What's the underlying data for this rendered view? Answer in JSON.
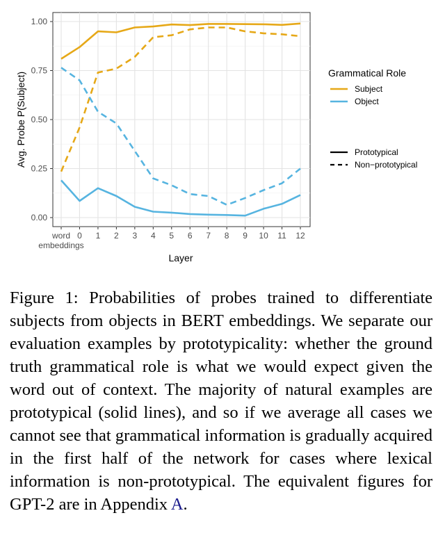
{
  "chart_data": {
    "type": "line",
    "xlabel": "Layer",
    "ylabel": "Avg. Probe P(Subject)",
    "categories": [
      [
        "word",
        "embeddings"
      ],
      "0",
      "1",
      "2",
      "3",
      "4",
      "5",
      "6",
      "7",
      "8",
      "9",
      "10",
      "11",
      "12"
    ],
    "ylim": [
      0,
      1
    ],
    "yticks": [
      "0.00",
      "0.25",
      "0.50",
      "0.75",
      "1.00"
    ],
    "grid": true,
    "legend_placement": "right",
    "legend": {
      "role_title": "Grammatical Role",
      "roles": [
        {
          "name": "Subject",
          "color": "#E6A817"
        },
        {
          "name": "Object",
          "color": "#56B4E0"
        }
      ],
      "styles": [
        {
          "name": "Prototypical",
          "dash": "solid"
        },
        {
          "name": "Non−prototypical",
          "dash": "dashed"
        }
      ]
    },
    "series": [
      {
        "role": "Subject",
        "style": "Prototypical",
        "color": "#E6A817",
        "dash": "solid",
        "values": [
          0.81,
          0.87,
          0.95,
          0.945,
          0.97,
          0.975,
          0.985,
          0.982,
          0.988,
          0.988,
          0.987,
          0.986,
          0.983,
          0.99
        ]
      },
      {
        "role": "Subject",
        "style": "Non−prototypical",
        "color": "#E6A817",
        "dash": "dashed",
        "values": [
          0.235,
          0.46,
          0.74,
          0.76,
          0.82,
          0.92,
          0.93,
          0.96,
          0.97,
          0.97,
          0.95,
          0.94,
          0.935,
          0.925
        ]
      },
      {
        "role": "Object",
        "style": "Prototypical",
        "color": "#56B4E0",
        "dash": "solid",
        "values": [
          0.19,
          0.085,
          0.15,
          0.11,
          0.055,
          0.03,
          0.025,
          0.018,
          0.015,
          0.013,
          0.01,
          0.045,
          0.07,
          0.115
        ]
      },
      {
        "role": "Object",
        "style": "Non−prototypical",
        "color": "#56B4E0",
        "dash": "dashed",
        "values": [
          0.765,
          0.7,
          0.54,
          0.48,
          0.34,
          0.2,
          0.165,
          0.12,
          0.11,
          0.065,
          0.1,
          0.14,
          0.175,
          0.25
        ]
      }
    ]
  },
  "caption": {
    "text": "Figure 1: Probabilities of probes trained to differentiate subjects from objects in BERT embeddings. We separate our evaluation examples by prototypicality: whether the ground truth grammatical role is what we would expect given the word out of context. The majority of natural examples are prototypical (solid lines), and so if we average all cases we cannot see that grammatical information is gradually acquired in the first half of the network for cases where lexical information is non-prototypical. The equivalent figures for GPT-2 are in Appendix ",
    "link": "A",
    "end": "."
  }
}
